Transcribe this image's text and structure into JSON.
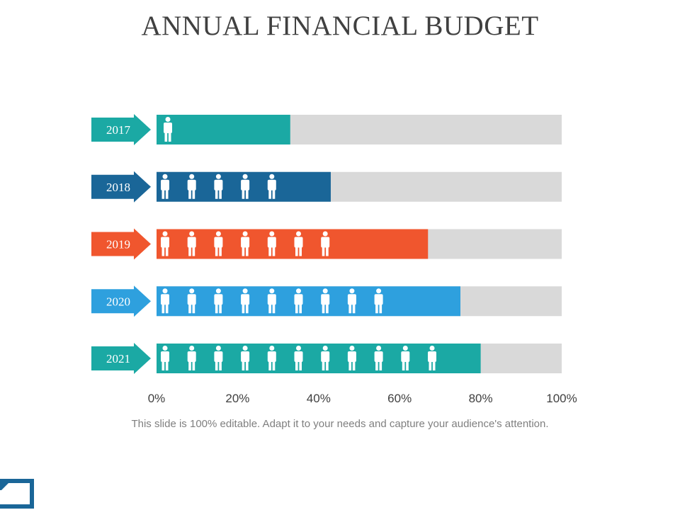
{
  "title": "ANNUAL FINANCIAL BUDGET",
  "caption": "This slide is 100% editable. Adapt it to your needs and capture your audience's attention.",
  "chart_data": {
    "type": "bar",
    "orientation": "horizontal",
    "categories": [
      "2017",
      "2018",
      "2019",
      "2020",
      "2021"
    ],
    "values": [
      33,
      43,
      67,
      75,
      80
    ],
    "people_icons": [
      1,
      5,
      7,
      9,
      11
    ],
    "xlim": [
      0,
      100
    ],
    "x_ticks": [
      "0%",
      "20%",
      "40%",
      "60%",
      "80%",
      "100%"
    ],
    "colors": [
      "#1BA9A4",
      "#1A6698",
      "#F0562E",
      "#2EA0DE",
      "#1BA9A4"
    ],
    "track_color": "#D9D9D9",
    "icon": "person-icon",
    "title": "",
    "xlabel": "",
    "ylabel": ""
  }
}
